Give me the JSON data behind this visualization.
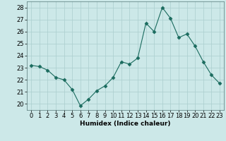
{
  "x": [
    0,
    1,
    2,
    3,
    4,
    5,
    6,
    7,
    8,
    9,
    10,
    11,
    12,
    13,
    14,
    15,
    16,
    17,
    18,
    19,
    20,
    21,
    22,
    23
  ],
  "y": [
    23.2,
    23.1,
    22.8,
    22.2,
    22.0,
    21.2,
    19.85,
    20.4,
    21.1,
    21.5,
    22.2,
    23.5,
    23.3,
    23.8,
    26.7,
    26.0,
    28.0,
    27.1,
    25.5,
    25.8,
    24.8,
    23.5,
    22.4,
    21.7
  ],
  "line_color": "#1a6b5e",
  "marker": "D",
  "marker_size": 2.5,
  "bg_color": "#cce8e8",
  "grid_color": "#aacece",
  "xlabel": "Humidex (Indice chaleur)",
  "ylim": [
    19.5,
    28.5
  ],
  "yticks": [
    20,
    21,
    22,
    23,
    24,
    25,
    26,
    27,
    28
  ],
  "xticks": [
    0,
    1,
    2,
    3,
    4,
    5,
    6,
    7,
    8,
    9,
    10,
    11,
    12,
    13,
    14,
    15,
    16,
    17,
    18,
    19,
    20,
    21,
    22,
    23
  ],
  "axis_fontsize": 6.5,
  "tick_fontsize": 6.0
}
